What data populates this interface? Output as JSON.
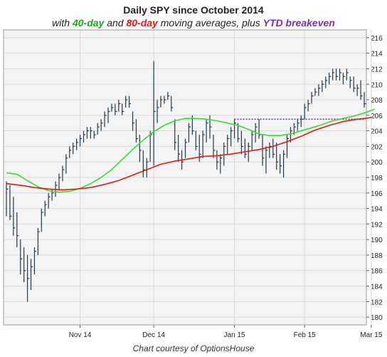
{
  "header": {
    "title": "Daily SPY since October 2014",
    "subtitle_pre": "with ",
    "ma40_label": "40-day",
    "subtitle_mid": " and ",
    "ma80_label": "80-day",
    "subtitle_mid2": " moving averages, plus ",
    "ytd_label": "YTD breakeven"
  },
  "footer": {
    "credit": "Chart courtesy  of OptionsHouse"
  },
  "colors": {
    "ma40": "#33dd33",
    "ma80": "#e8170f",
    "ytd": "#7a2fb0",
    "bars": "#1f3a4a",
    "grid": "#d8d8d8",
    "plot_bg": "#f4f4f4"
  },
  "chart_data": {
    "type": "ohlc",
    "title": "Daily SPY since October 2014",
    "ylim": [
      179,
      217
    ],
    "y_ticks": [
      180,
      182,
      184,
      186,
      188,
      190,
      192,
      194,
      196,
      198,
      200,
      202,
      204,
      206,
      208,
      210,
      212,
      214,
      216
    ],
    "x_ticks": [
      {
        "label": "Nov 14",
        "index": 21
      },
      {
        "label": "Dec 14",
        "index": 42
      },
      {
        "label": "Jan 15",
        "index": 65
      },
      {
        "label": "Feb 15",
        "index": 85
      },
      {
        "label": "Mar 15",
        "index": 104
      }
    ],
    "ytd_breakeven": 205.5,
    "ytd_start_index": 65,
    "bars": [
      [
        197.5,
        193.0,
        196.5
      ],
      [
        197.0,
        192.5,
        193.0
      ],
      [
        195.5,
        190.5,
        191.5
      ],
      [
        193.5,
        189.0,
        190.5
      ],
      [
        190.0,
        185.5,
        187.5
      ],
      [
        189.0,
        184.5,
        186.0
      ],
      [
        188.0,
        182.0,
        185.0
      ],
      [
        187.5,
        183.5,
        186.5
      ],
      [
        189.0,
        185.5,
        188.5
      ],
      [
        191.5,
        188.0,
        191.0
      ],
      [
        194.0,
        191.0,
        193.5
      ],
      [
        195.0,
        193.0,
        194.5
      ],
      [
        196.0,
        194.0,
        195.5
      ],
      [
        196.5,
        195.0,
        196.0
      ],
      [
        197.5,
        195.5,
        197.0
      ],
      [
        198.5,
        196.5,
        198.0
      ],
      [
        199.5,
        197.5,
        199.0
      ],
      [
        201.0,
        198.5,
        200.5
      ],
      [
        202.0,
        200.5,
        201.5
      ],
      [
        202.5,
        201.0,
        202.0
      ],
      [
        203.0,
        201.5,
        202.5
      ],
      [
        203.5,
        202.0,
        203.0
      ],
      [
        204.0,
        202.5,
        203.5
      ],
      [
        204.5,
        203.0,
        204.0
      ],
      [
        204.5,
        203.0,
        204.0
      ],
      [
        204.0,
        203.0,
        203.5
      ],
      [
        205.0,
        203.5,
        204.5
      ],
      [
        205.5,
        204.0,
        205.0
      ],
      [
        206.5,
        204.5,
        206.0
      ],
      [
        207.0,
        205.0,
        206.5
      ],
      [
        207.5,
        206.5,
        207.0
      ],
      [
        207.5,
        206.0,
        206.5
      ],
      [
        208.0,
        206.5,
        207.5
      ],
      [
        207.5,
        206.0,
        206.5
      ],
      [
        208.5,
        207.0,
        208.0
      ],
      [
        208.5,
        207.0,
        207.5
      ],
      [
        206.5,
        204.0,
        205.0
      ],
      [
        205.5,
        202.5,
        203.0
      ],
      [
        203.5,
        200.0,
        201.5
      ],
      [
        201.5,
        198.0,
        199.0
      ],
      [
        200.5,
        198.0,
        200.0
      ],
      [
        204.0,
        200.0,
        203.5
      ],
      [
        213.0,
        199.5,
        206.5
      ],
      [
        208.0,
        205.0,
        207.0
      ],
      [
        208.5,
        207.0,
        208.0
      ],
      [
        208.5,
        207.5,
        208.0
      ],
      [
        209.0,
        208.0,
        208.5
      ],
      [
        208.5,
        206.5,
        207.0
      ],
      [
        205.5,
        201.5,
        202.5
      ],
      [
        203.5,
        200.0,
        201.0
      ],
      [
        201.5,
        199.0,
        200.0
      ],
      [
        203.0,
        200.5,
        202.5
      ],
      [
        205.0,
        202.5,
        204.5
      ],
      [
        206.0,
        203.5,
        204.0
      ],
      [
        204.0,
        201.5,
        202.0
      ],
      [
        203.5,
        200.0,
        201.0
      ],
      [
        204.0,
        200.5,
        203.5
      ],
      [
        205.5,
        202.5,
        205.0
      ],
      [
        206.0,
        203.0,
        204.5
      ],
      [
        203.5,
        200.5,
        201.5
      ],
      [
        201.5,
        199.0,
        200.0
      ],
      [
        201.0,
        198.5,
        200.5
      ],
      [
        202.5,
        199.5,
        202.0
      ],
      [
        203.5,
        201.0,
        203.0
      ],
      [
        204.5,
        202.0,
        204.0
      ],
      [
        205.5,
        203.0,
        205.0
      ],
      [
        205.0,
        202.5,
        203.0
      ],
      [
        204.0,
        201.0,
        202.0
      ],
      [
        203.0,
        200.5,
        201.0
      ],
      [
        202.5,
        200.0,
        202.0
      ],
      [
        204.0,
        201.5,
        203.5
      ],
      [
        205.0,
        202.5,
        204.5
      ],
      [
        205.5,
        203.0,
        203.5
      ],
      [
        203.5,
        199.5,
        200.5
      ],
      [
        202.0,
        198.5,
        201.5
      ],
      [
        202.5,
        200.5,
        202.0
      ],
      [
        203.0,
        200.5,
        201.0
      ],
      [
        202.5,
        199.0,
        200.0
      ],
      [
        201.0,
        198.5,
        199.5
      ],
      [
        201.5,
        198.0,
        201.0
      ],
      [
        203.5,
        200.5,
        203.0
      ],
      [
        204.5,
        202.5,
        204.0
      ],
      [
        205.0,
        203.5,
        204.5
      ],
      [
        205.5,
        204.0,
        205.0
      ],
      [
        206.0,
        204.5,
        205.5
      ],
      [
        207.5,
        205.5,
        207.0
      ],
      [
        208.0,
        206.5,
        207.5
      ],
      [
        209.0,
        207.5,
        208.5
      ],
      [
        209.5,
        208.5,
        209.0
      ],
      [
        210.0,
        208.5,
        209.5
      ],
      [
        210.5,
        209.0,
        210.0
      ],
      [
        211.0,
        209.5,
        210.5
      ],
      [
        211.5,
        210.0,
        211.0
      ],
      [
        212.0,
        210.5,
        211.5
      ],
      [
        212.0,
        210.5,
        211.0
      ],
      [
        212.0,
        210.5,
        211.5
      ],
      [
        211.5,
        210.0,
        211.0
      ],
      [
        212.0,
        210.5,
        211.5
      ],
      [
        211.0,
        209.5,
        210.5
      ],
      [
        211.0,
        209.0,
        209.5
      ],
      [
        210.0,
        208.5,
        209.5
      ],
      [
        210.5,
        208.0,
        208.5
      ],
      [
        209.0,
        207.0,
        207.5
      ]
    ],
    "series": [
      {
        "name": "40-day",
        "points": [
          [
            0,
            198.6
          ],
          [
            3,
            198.4
          ],
          [
            6,
            197.6
          ],
          [
            9,
            196.8
          ],
          [
            12,
            196.3
          ],
          [
            15,
            196.1
          ],
          [
            18,
            196.2
          ],
          [
            21,
            196.6
          ],
          [
            24,
            197.2
          ],
          [
            27,
            198.0
          ],
          [
            30,
            199.0
          ],
          [
            33,
            200.3
          ],
          [
            36,
            201.6
          ],
          [
            39,
            202.8
          ],
          [
            42,
            203.9
          ],
          [
            45,
            204.7
          ],
          [
            48,
            205.3
          ],
          [
            51,
            205.6
          ],
          [
            54,
            205.6
          ],
          [
            57,
            205.5
          ],
          [
            60,
            205.3
          ],
          [
            63,
            205.0
          ],
          [
            66,
            204.7
          ],
          [
            69,
            204.2
          ],
          [
            72,
            203.6
          ],
          [
            75,
            203.4
          ],
          [
            78,
            203.4
          ],
          [
            81,
            203.6
          ],
          [
            84,
            204.0
          ],
          [
            87,
            204.4
          ],
          [
            90,
            204.8
          ],
          [
            93,
            205.3
          ],
          [
            96,
            205.6
          ],
          [
            99,
            205.9
          ],
          [
            102,
            206.3
          ],
          [
            105,
            206.8
          ]
        ]
      },
      {
        "name": "80-day",
        "points": [
          [
            0,
            197.2
          ],
          [
            4,
            197.0
          ],
          [
            8,
            196.7
          ],
          [
            12,
            196.5
          ],
          [
            16,
            196.4
          ],
          [
            20,
            196.5
          ],
          [
            24,
            196.7
          ],
          [
            28,
            197.1
          ],
          [
            32,
            197.6
          ],
          [
            36,
            198.3
          ],
          [
            40,
            199.0
          ],
          [
            44,
            199.7
          ],
          [
            48,
            200.1
          ],
          [
            52,
            200.4
          ],
          [
            56,
            200.7
          ],
          [
            60,
            200.8
          ],
          [
            64,
            201.0
          ],
          [
            68,
            201.3
          ],
          [
            72,
            201.6
          ],
          [
            76,
            202.0
          ],
          [
            80,
            202.6
          ],
          [
            84,
            203.3
          ],
          [
            88,
            204.1
          ],
          [
            92,
            204.7
          ],
          [
            96,
            205.2
          ],
          [
            100,
            205.5
          ],
          [
            104,
            205.7
          ]
        ]
      }
    ]
  }
}
